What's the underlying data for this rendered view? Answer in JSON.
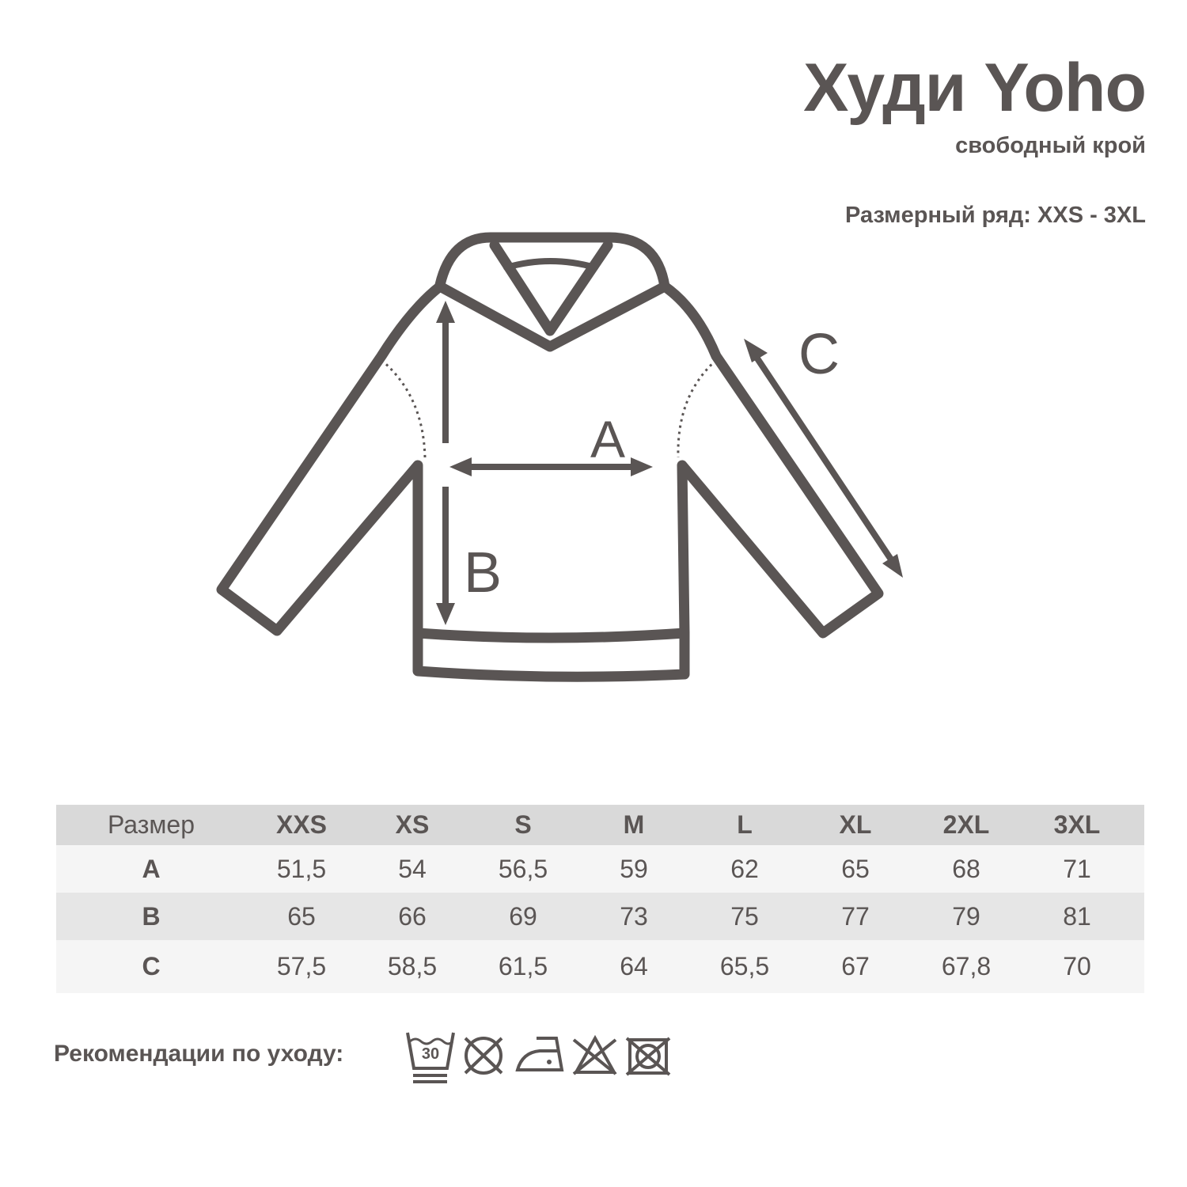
{
  "header": {
    "title": "Худи Yoho",
    "subtitle": "свободный крой",
    "size_range": "Размерный ряд: XXS - 3XL"
  },
  "diagram": {
    "labels": {
      "a": "A",
      "b": "B",
      "c": "C"
    }
  },
  "table": {
    "columns": [
      "Размер",
      "XXS",
      "XS",
      "S",
      "M",
      "L",
      "XL",
      "2XL",
      "3XL"
    ],
    "rows": [
      {
        "label": "A",
        "values": [
          "51,5",
          "54",
          "56,5",
          "59",
          "62",
          "65",
          "68",
          "71"
        ]
      },
      {
        "label": "B",
        "values": [
          "65",
          "66",
          "69",
          "73",
          "75",
          "77",
          "79",
          "81"
        ]
      },
      {
        "label": "C",
        "values": [
          "57,5",
          "58,5",
          "61,5",
          "64",
          "65,5",
          "67",
          "67,8",
          "70"
        ]
      }
    ]
  },
  "care": {
    "label": "Рекомендации по уходу:",
    "wash_temp": "30",
    "icons": [
      "wash-30-gentle-icon",
      "no-bleach-icon",
      "iron-low-icon",
      "no-bleach-triangle-icon",
      "no-tumble-dry-icon"
    ]
  },
  "colors": {
    "ink": "#5a5554",
    "header_bg": "#d9d9d9",
    "row_light": "#f5f5f5",
    "row_dark": "#e6e6e6"
  }
}
